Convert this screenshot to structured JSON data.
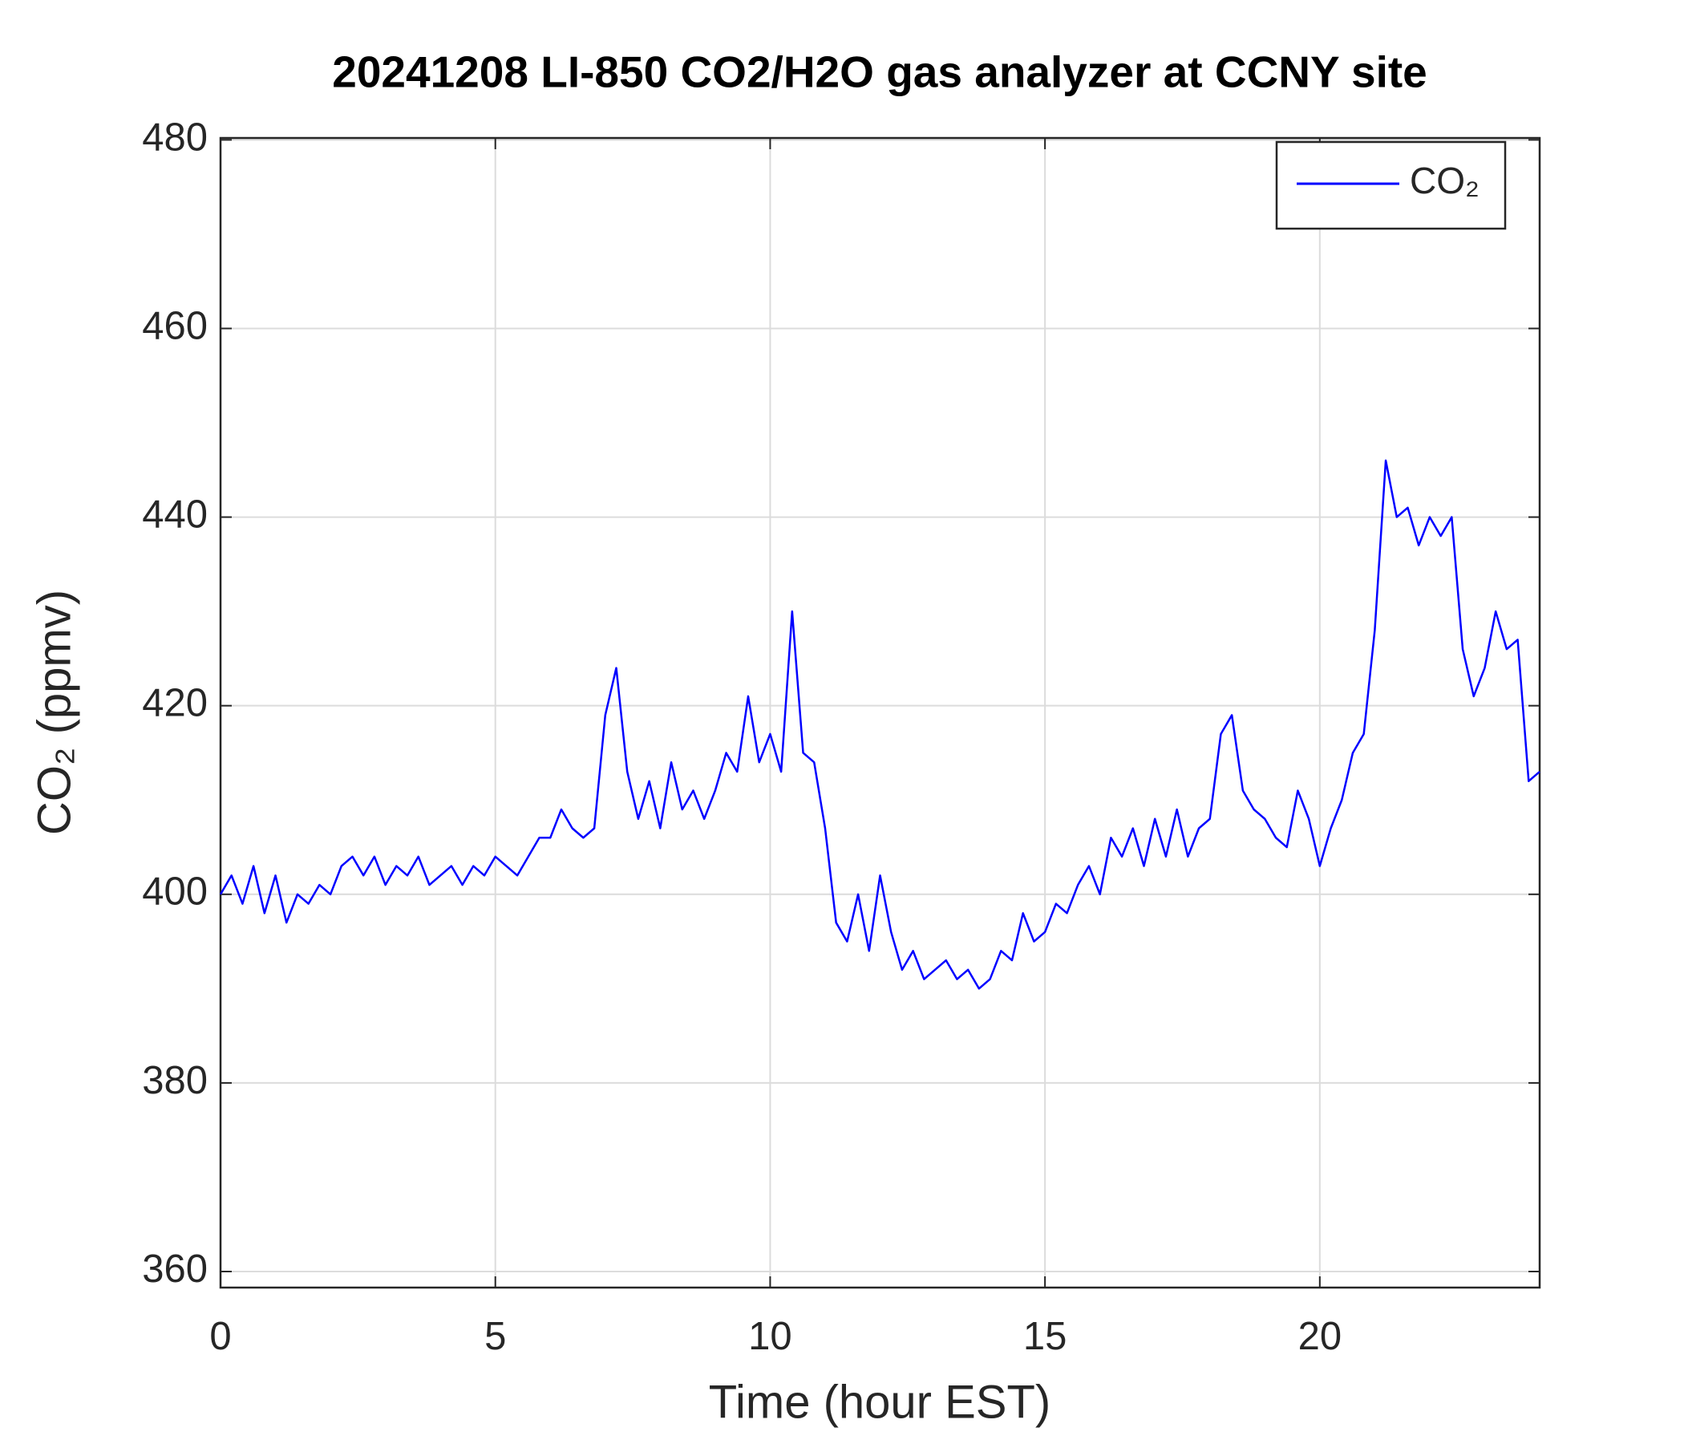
{
  "chart_data": {
    "type": "line",
    "title": "20241208 LI-850 CO2/H2O gas analyzer at CCNY site",
    "xlabel": "Time (hour EST)",
    "ylabel": "CO₂ (ppmv)",
    "x": [
      0,
      0.2,
      0.4,
      0.6,
      0.8,
      1,
      1.2,
      1.4,
      1.6,
      1.8,
      2,
      2.2,
      2.4,
      2.6,
      2.8,
      3,
      3.2,
      3.4,
      3.6,
      3.8,
      4,
      4.2,
      4.4,
      4.6,
      4.8,
      5,
      5.2,
      5.4,
      5.6,
      5.8,
      6,
      6.2,
      6.4,
      6.6,
      6.8,
      7,
      7.2,
      7.4,
      7.6,
      7.8,
      8,
      8.2,
      8.4,
      8.6,
      8.8,
      9,
      9.2,
      9.4,
      9.6,
      9.8,
      10,
      10.2,
      10.4,
      10.6,
      10.8,
      11,
      11.2,
      11.4,
      11.6,
      11.8,
      12,
      12.2,
      12.4,
      12.6,
      12.8,
      13,
      13.2,
      13.4,
      13.6,
      13.8,
      14,
      14.2,
      14.4,
      14.6,
      14.8,
      15,
      15.2,
      15.4,
      15.6,
      15.8,
      16,
      16.2,
      16.4,
      16.6,
      16.8,
      17,
      17.2,
      17.4,
      17.6,
      17.8,
      18,
      18.2,
      18.4,
      18.6,
      18.8,
      19,
      19.2,
      19.4,
      19.6,
      19.8,
      20,
      20.2,
      20.4,
      20.6,
      20.8,
      21,
      21.2,
      21.4,
      21.6,
      21.8,
      22,
      22.2,
      22.4,
      22.6,
      22.8,
      23,
      23.2,
      23.4,
      23.6,
      23.8,
      24
    ],
    "series": [
      {
        "name": "CO₂",
        "color": "#0000ff",
        "values": [
          400,
          402,
          399,
          403,
          398,
          402,
          397,
          400,
          399,
          401,
          400,
          403,
          404,
          402,
          404,
          401,
          403,
          402,
          404,
          401,
          402,
          403,
          401,
          403,
          402,
          404,
          403,
          402,
          404,
          406,
          406,
          409,
          407,
          406,
          407,
          419,
          424,
          413,
          408,
          412,
          407,
          414,
          409,
          411,
          408,
          411,
          415,
          413,
          421,
          414,
          417,
          413,
          430,
          415,
          414,
          407,
          397,
          395,
          400,
          394,
          402,
          396,
          392,
          394,
          391,
          392,
          393,
          391,
          392,
          390,
          391,
          394,
          393,
          398,
          395,
          396,
          399,
          398,
          401,
          403,
          400,
          406,
          404,
          407,
          403,
          408,
          404,
          409,
          404,
          407,
          408,
          417,
          419,
          411,
          409,
          408,
          406,
          405,
          411,
          408,
          403,
          407,
          410,
          415,
          417,
          428,
          446,
          440,
          441,
          437,
          440,
          438,
          440,
          426,
          421,
          424,
          430,
          426,
          427,
          412,
          413
        ]
      }
    ],
    "xlim": [
      0,
      24
    ],
    "xticks": [
      0,
      5,
      10,
      15,
      20
    ],
    "ylim": [
      358.3,
      480.2
    ],
    "yticks": [
      360,
      380,
      400,
      420,
      440,
      460,
      480
    ],
    "grid": true,
    "legend": "upper right"
  }
}
